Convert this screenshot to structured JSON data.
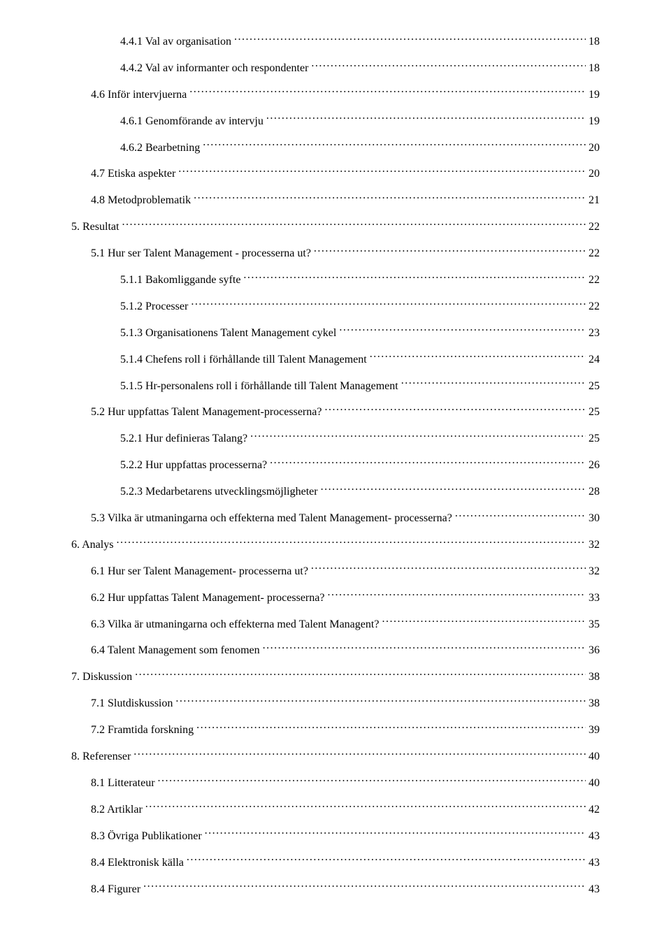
{
  "toc": [
    {
      "title": "4.4.1 Val av organisation",
      "page": "18",
      "indent": 2
    },
    {
      "title": "4.4.2 Val av informanter och respondenter",
      "page": "18",
      "indent": 2
    },
    {
      "title": "4.6 Inför intervjuerna",
      "page": "19",
      "indent": 1
    },
    {
      "title": "4.6.1 Genomförande av intervju",
      "page": "19",
      "indent": 2
    },
    {
      "title": "4.6.2 Bearbetning",
      "page": "20",
      "indent": 2
    },
    {
      "title": "4.7 Etiska aspekter",
      "page": "20",
      "indent": 1
    },
    {
      "title": "4.8 Metodproblematik",
      "page": "21",
      "indent": 1
    },
    {
      "title": "5. Resultat",
      "page": "22",
      "indent": 0
    },
    {
      "title": "5.1 Hur ser Talent Management - processerna ut?",
      "page": "22",
      "indent": 1
    },
    {
      "title": "5.1.1 Bakomliggande syfte",
      "page": "22",
      "indent": 2
    },
    {
      "title": "5.1.2 Processer",
      "page": "22",
      "indent": 2
    },
    {
      "title": "5.1.3 Organisationens Talent Management cykel",
      "page": "23",
      "indent": 2
    },
    {
      "title": "5.1.4 Chefens roll i förhållande till Talent Management",
      "page": "24",
      "indent": 2
    },
    {
      "title": "5.1.5 Hr-personalens roll i förhållande till Talent Management",
      "page": "25",
      "indent": 2
    },
    {
      "title": "5.2 Hur uppfattas Talent Management-processerna?",
      "page": "25",
      "indent": 1
    },
    {
      "title": "5.2.1 Hur definieras Talang?",
      "page": "25",
      "indent": 2
    },
    {
      "title": "5.2.2 Hur uppfattas processerna?",
      "page": "26",
      "indent": 2
    },
    {
      "title": "5.2.3 Medarbetarens utvecklingsmöjligheter",
      "page": "28",
      "indent": 2
    },
    {
      "title": "5.3 Vilka är utmaningarna och effekterna med Talent Management- processerna?",
      "page": "30",
      "indent": 1
    },
    {
      "title": "6. Analys",
      "page": "32",
      "indent": 0
    },
    {
      "title": "6.1 Hur ser Talent Management- processerna ut?",
      "page": "32",
      "indent": 1
    },
    {
      "title": "6.2 Hur uppfattas Talent Management- processerna?",
      "page": "33",
      "indent": 1
    },
    {
      "title": "6.3 Vilka är utmaningarna och effekterna med Talent Managent?",
      "page": "35",
      "indent": 1
    },
    {
      "title": "6.4 Talent Management som fenomen",
      "page": "36",
      "indent": 1
    },
    {
      "title": "7. Diskussion",
      "page": "38",
      "indent": 0
    },
    {
      "title": "7.1 Slutdiskussion",
      "page": "38",
      "indent": 1
    },
    {
      "title": "7.2 Framtida forskning",
      "page": "39",
      "indent": 1
    },
    {
      "title": "8. Referenser",
      "page": "40",
      "indent": 0
    },
    {
      "title": "8.1 Litterateur",
      "page": "40",
      "indent": 1
    },
    {
      "title": "8.2 Artiklar",
      "page": "42",
      "indent": 1
    },
    {
      "title": "8.3 Övriga Publikationer",
      "page": "43",
      "indent": 1
    },
    {
      "title": "8.4 Elektronisk källa",
      "page": "43",
      "indent": 1
    },
    {
      "title": "8.4 Figurer",
      "page": "43",
      "indent": 1
    }
  ]
}
